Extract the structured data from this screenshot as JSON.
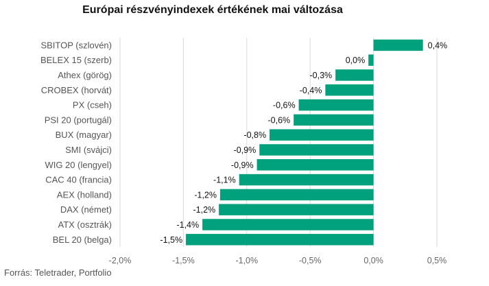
{
  "chart_data": {
    "type": "bar",
    "orientation": "horizontal",
    "title": "Európai részvényindexek értékének mai változása",
    "categories": [
      "SBITOP (szlovén)",
      "BELEX 15 (szerb)",
      "Athex (görög)",
      "CROBEX (horvát)",
      "PX (cseh)",
      "PSI 20 (portugál)",
      "BUX (magyar)",
      "SMI (svájci)",
      "WIG 20 (lengyel)",
      "CAC 40 (francia)",
      "AEX (holland)",
      "DAX (német)",
      "ATX (osztrák)",
      "BEL 20 (belga)"
    ],
    "values": [
      0.39,
      -0.04,
      -0.3,
      -0.38,
      -0.59,
      -0.63,
      -0.82,
      -0.9,
      -0.92,
      -1.06,
      -1.21,
      -1.22,
      -1.35,
      -1.48
    ],
    "value_labels": [
      "0,4%",
      "0,0%",
      "-0,3%",
      "-0,4%",
      "-0,6%",
      "-0,6%",
      "-0,8%",
      "-0,9%",
      "-0,9%",
      "-1,1%",
      "-1,2%",
      "-1,2%",
      "-1,4%",
      "-1,5%"
    ],
    "xlim": [
      -2.0,
      0.5
    ],
    "xticks": [
      -2.0,
      -1.5,
      -1.0,
      -0.5,
      0.0,
      0.5
    ],
    "xtick_labels": [
      "-2,0%",
      "-1,5%",
      "-1,0%",
      "-0,5%",
      "0,0%",
      "0,5%"
    ],
    "grid": "vertical",
    "bar_color": "#00a17c",
    "grid_color": "#d9d9d9"
  },
  "source": "Forrás: Teletrader, Portfolio"
}
